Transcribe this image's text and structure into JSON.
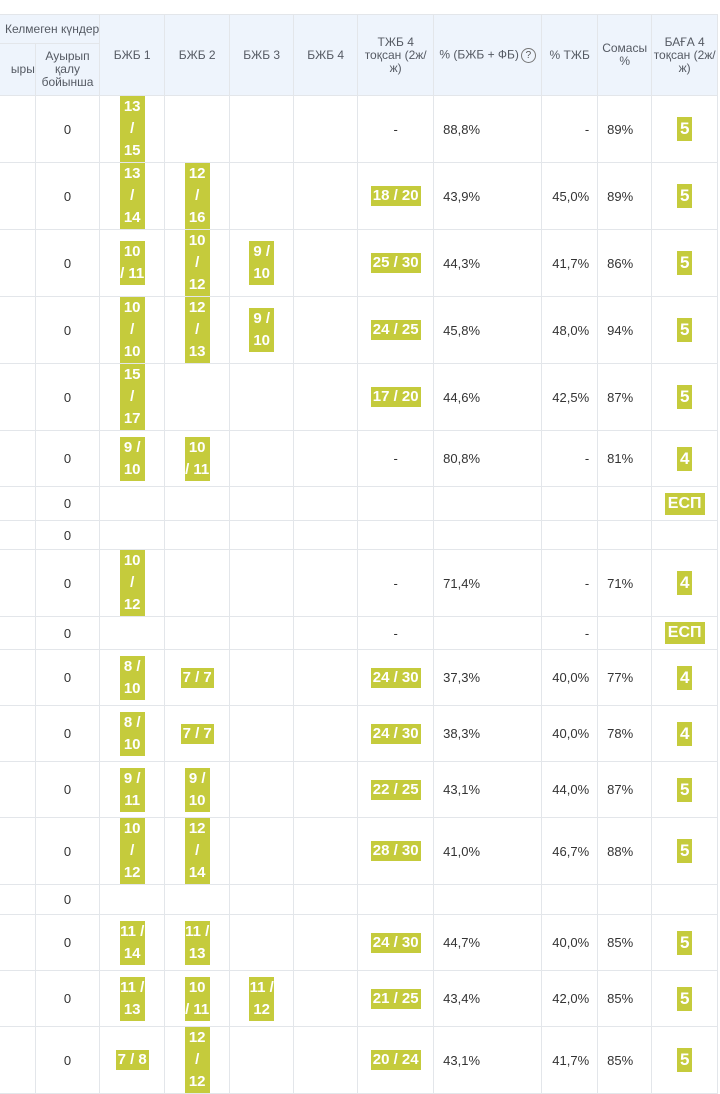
{
  "header": {
    "missed_group": "Келмеген күндер",
    "col_reason_partial": "ыры",
    "col_sick": "Ауырып қалу бойынша",
    "col_bzhb1": "БЖБ 1",
    "col_bzhb2": "БЖБ 2",
    "col_bzhb3": "БЖБ 3",
    "col_bzhb4": "БЖБ 4",
    "col_tzhb": "ТЖБ 4 тоқсан (2ж/ж)",
    "col_pct_bzhb_fb": "% (БЖБ + ФБ)",
    "col_pct_tzhb": "% ТЖБ",
    "col_total": "Сомасы %",
    "col_grade": "БАҒА 4 тоқсан (2ж/ж)"
  },
  "rows": [
    {
      "sick": "0",
      "b1": "13 / 15",
      "b2": "",
      "b3": "",
      "b4": "",
      "tzhb": "-",
      "pf": "88,8%",
      "pt": "-",
      "sum": "89%",
      "grade": "5"
    },
    {
      "sick": "0",
      "b1": "13 / 14",
      "b2": "12 / 16",
      "b3": "",
      "b4": "",
      "tzhb": "18 / 20",
      "pf": "43,9%",
      "pt": "45,0%",
      "sum": "89%",
      "grade": "5"
    },
    {
      "sick": "0",
      "b1": "10 / 11",
      "b2": "10 / 12",
      "b3": "9 / 10",
      "b4": "",
      "tzhb": "25 / 30",
      "pf": "44,3%",
      "pt": "41,7%",
      "sum": "86%",
      "grade": "5"
    },
    {
      "sick": "0",
      "b1": "10 / 10",
      "b2": "12 / 13",
      "b3": "9 / 10",
      "b4": "",
      "tzhb": "24 / 25",
      "pf": "45,8%",
      "pt": "48,0%",
      "sum": "94%",
      "grade": "5"
    },
    {
      "sick": "0",
      "b1": "15 / 17",
      "b2": "",
      "b3": "",
      "b4": "",
      "tzhb": "17 / 20",
      "pf": "44,6%",
      "pt": "42,5%",
      "sum": "87%",
      "grade": "5"
    },
    {
      "sick": "0",
      "b1": "9 / 10",
      "b2": "10 / 11",
      "b3": "",
      "b4": "",
      "tzhb": "-",
      "pf": "80,8%",
      "pt": "-",
      "sum": "81%",
      "grade": "4"
    },
    {
      "sick": "0",
      "b1": "",
      "b2": "",
      "b3": "",
      "b4": "",
      "tzhb": "",
      "pf": "",
      "pt": "",
      "sum": "",
      "grade": "ЕСП"
    },
    {
      "sick": "0",
      "b1": "",
      "b2": "",
      "b3": "",
      "b4": "",
      "tzhb": "",
      "pf": "",
      "pt": "",
      "sum": "",
      "grade": ""
    },
    {
      "sick": "0",
      "b1": "10 / 12",
      "b2": "",
      "b3": "",
      "b4": "",
      "tzhb": "-",
      "pf": "71,4%",
      "pt": "-",
      "sum": "71%",
      "grade": "4"
    },
    {
      "sick": "0",
      "b1": "",
      "b2": "",
      "b3": "",
      "b4": "",
      "tzhb": "-",
      "pf": "",
      "pt": "-",
      "sum": "",
      "grade": "ЕСП"
    },
    {
      "sick": "0",
      "b1": "8 / 10",
      "b2": "7 / 7",
      "b3": "",
      "b4": "",
      "tzhb": "24 / 30",
      "pf": "37,3%",
      "pt": "40,0%",
      "sum": "77%",
      "grade": "4"
    },
    {
      "sick": "0",
      "b1": "8 / 10",
      "b2": "7 / 7",
      "b3": "",
      "b4": "",
      "tzhb": "24 / 30",
      "pf": "38,3%",
      "pt": "40,0%",
      "sum": "78%",
      "grade": "4"
    },
    {
      "sick": "0",
      "b1": "9 / 11",
      "b2": "9 / 10",
      "b3": "",
      "b4": "",
      "tzhb": "22 / 25",
      "pf": "43,1%",
      "pt": "44,0%",
      "sum": "87%",
      "grade": "5"
    },
    {
      "sick": "0",
      "b1": "10 / 12",
      "b2": "12 / 14",
      "b3": "",
      "b4": "",
      "tzhb": "28 / 30",
      "pf": "41,0%",
      "pt": "46,7%",
      "sum": "88%",
      "grade": "5"
    },
    {
      "sick": "0",
      "b1": "",
      "b2": "",
      "b3": "",
      "b4": "",
      "tzhb": "",
      "pf": "",
      "pt": "",
      "sum": "",
      "grade": ""
    },
    {
      "sick": "0",
      "b1": "11 / 14",
      "b2": "11 / 13",
      "b3": "",
      "b4": "",
      "tzhb": "24 / 30",
      "pf": "44,7%",
      "pt": "40,0%",
      "sum": "85%",
      "grade": "5"
    },
    {
      "sick": "0",
      "b1": "11 / 13",
      "b2": "10 / 11",
      "b3": "11 / 12",
      "b4": "",
      "tzhb": "21 / 25",
      "pf": "43,4%",
      "pt": "42,0%",
      "sum": "85%",
      "grade": "5"
    },
    {
      "sick": "0",
      "b1": "7 / 8",
      "b2": "12 / 12",
      "b3": "",
      "b4": "",
      "tzhb": "20 / 24",
      "pf": "43,1%",
      "pt": "41,7%",
      "sum": "85%",
      "grade": "5"
    }
  ],
  "colors": {
    "badge": "#c5cb3c",
    "header_bg": "#eef4fc",
    "border": "#e3e6ea"
  }
}
